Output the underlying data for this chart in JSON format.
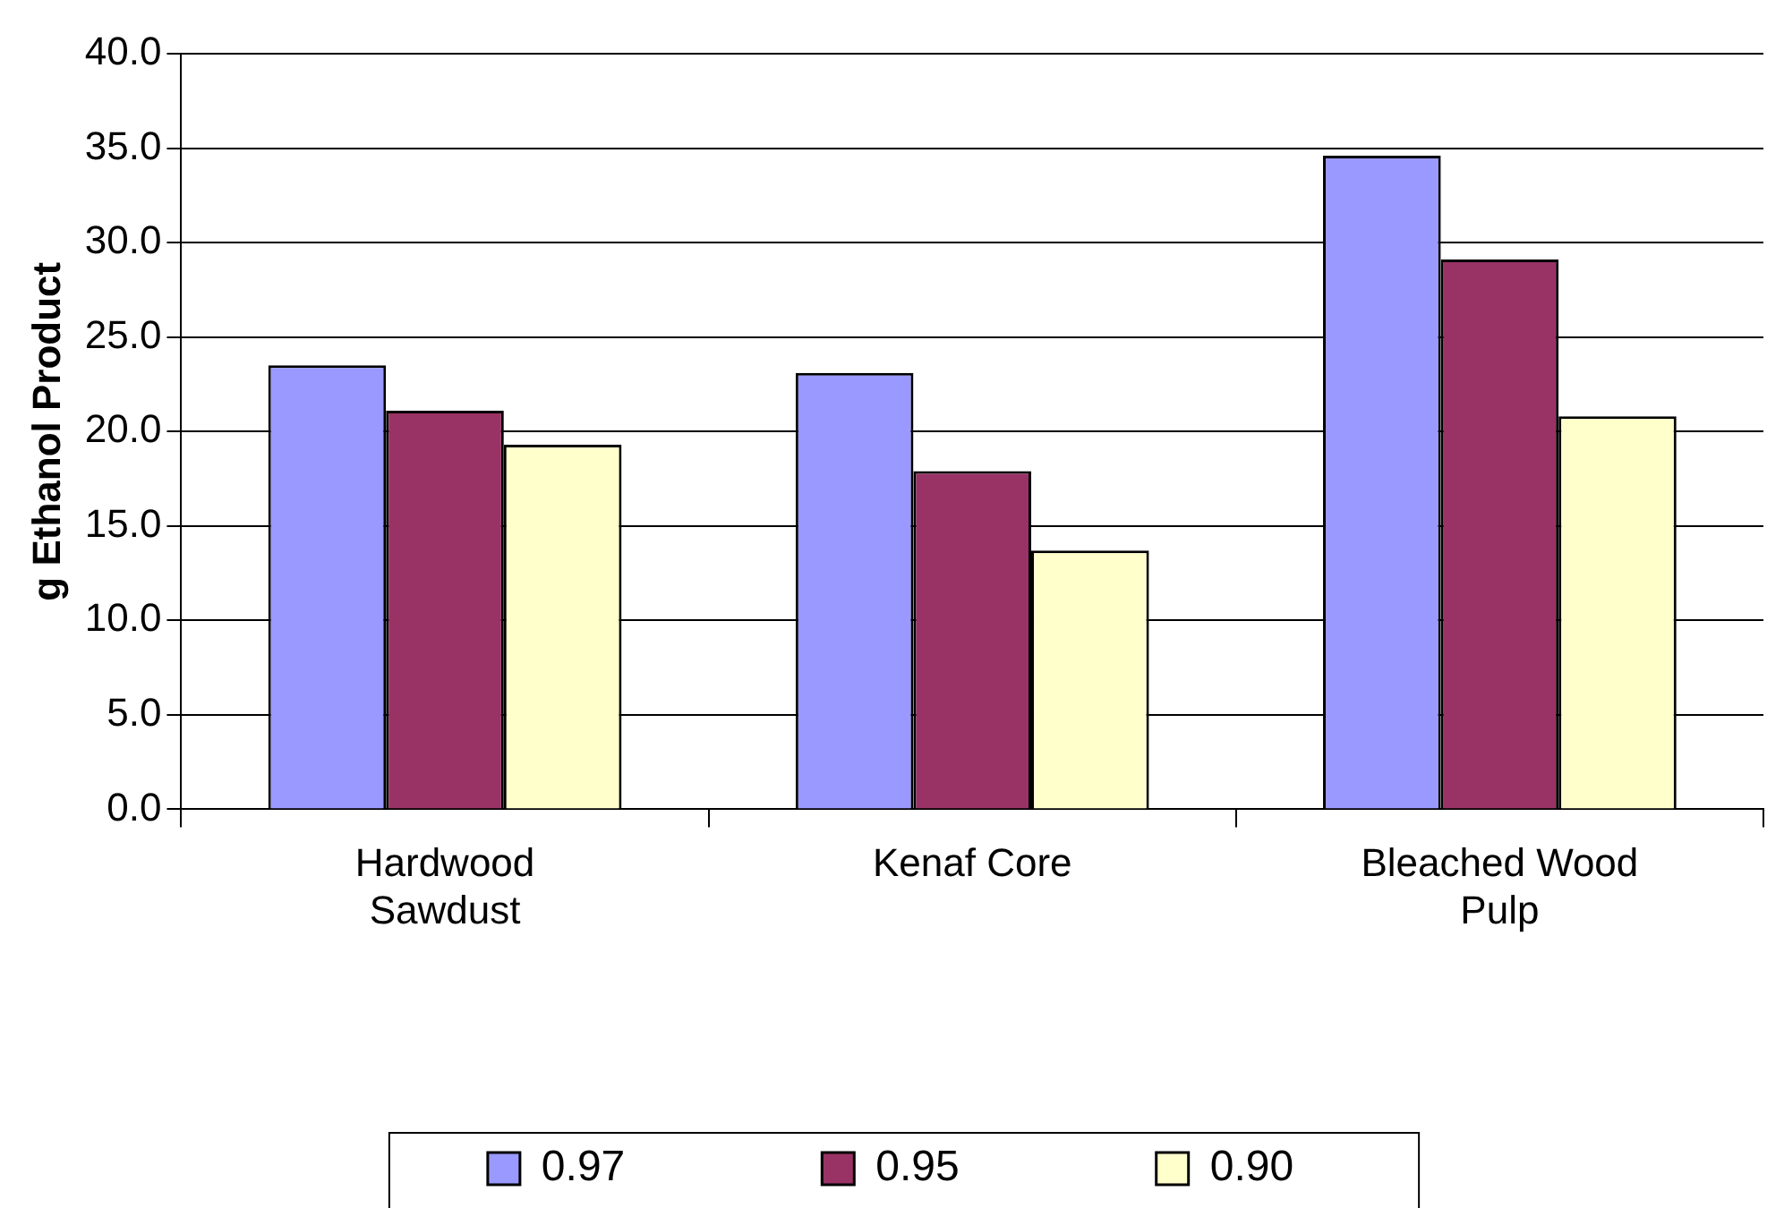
{
  "chart_data": {
    "type": "bar",
    "ylabel": "g Ethanol Product",
    "categories": [
      "Hardwood Sawdust",
      "Kenaf Core",
      "Bleached Wood Pulp"
    ],
    "series": [
      {
        "name": "0.97",
        "color": "#9999ff",
        "values": [
          23.5,
          23.1,
          34.6
        ]
      },
      {
        "name": "0.95",
        "color": "#993366",
        "values": [
          21.1,
          17.9,
          29.1
        ]
      },
      {
        "name": "0.90",
        "color": "#ffffcc",
        "values": [
          19.3,
          13.7,
          20.8
        ]
      }
    ],
    "ylim": [
      0,
      40
    ],
    "yticks": [
      {
        "value": 0,
        "label": "0.0"
      },
      {
        "value": 5,
        "label": "5.0"
      },
      {
        "value": 10,
        "label": "10.0"
      },
      {
        "value": 15,
        "label": "15.0"
      },
      {
        "value": 20,
        "label": "20.0"
      },
      {
        "value": 25,
        "label": "25.0"
      },
      {
        "value": 30,
        "label": "30.0"
      },
      {
        "value": 35,
        "label": "35.0"
      },
      {
        "value": 40,
        "label": "40.0"
      }
    ],
    "grid": "y",
    "legend": "bottom"
  }
}
